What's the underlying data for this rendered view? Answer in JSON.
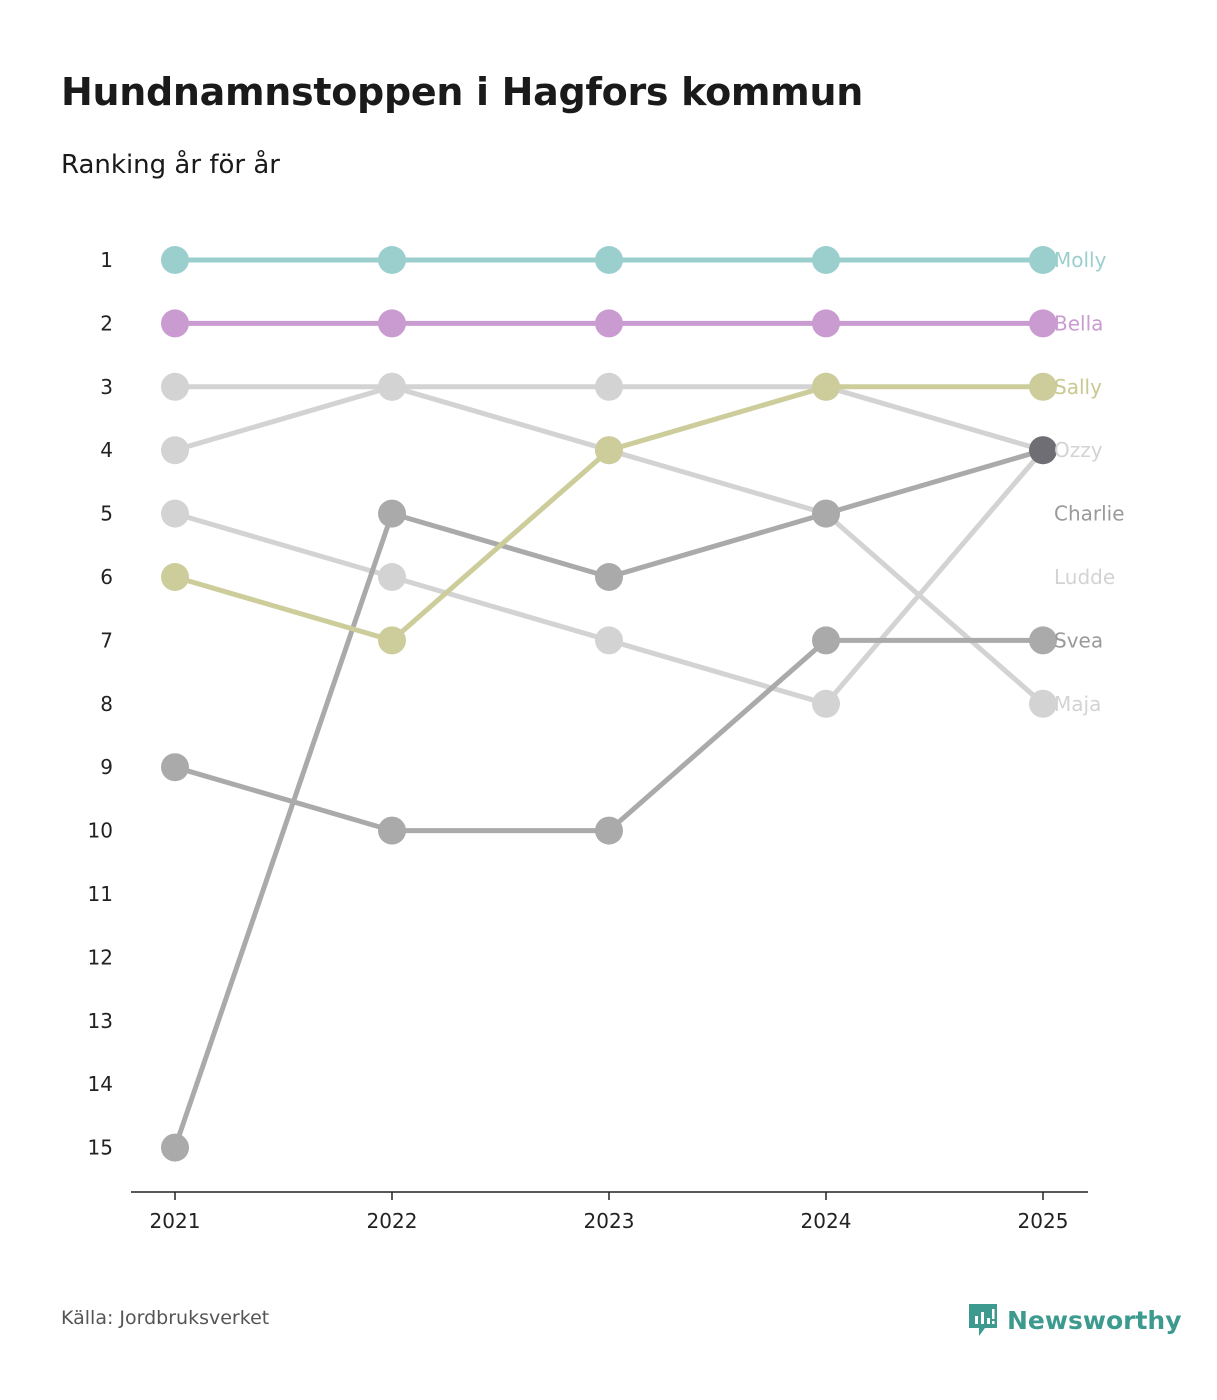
{
  "title": "Hundnamnstoppen i Hagfors kommun",
  "subtitle": "Ranking år för år",
  "source": "Källa: Jordbruksverket",
  "brand": {
    "name": "Newsworthy",
    "icon": "newsworthy-logo-icon",
    "color": "#3d9a8f"
  },
  "chart_data": {
    "type": "line",
    "chart_kind": "bump",
    "x": [
      "2021",
      "2022",
      "2023",
      "2024",
      "2025"
    ],
    "y_ticks": [
      "1",
      "2",
      "3",
      "4",
      "5",
      "6",
      "7",
      "8",
      "9",
      "10",
      "11",
      "12",
      "13",
      "14",
      "15"
    ],
    "ylim": [
      1,
      15
    ],
    "y_inverted": true,
    "series": [
      {
        "name": "Molly",
        "color": "#9bcfce",
        "label_color": "#9bcfce",
        "values": [
          1,
          1,
          1,
          1,
          1
        ]
      },
      {
        "name": "Bella",
        "color": "#c99bd1",
        "label_color": "#c99bd1",
        "values": [
          2,
          2,
          2,
          2,
          2
        ]
      },
      {
        "name": "Sally",
        "color": "#cccd9b",
        "label_color": "#c8c890",
        "values": [
          6,
          7,
          4,
          3,
          3
        ]
      },
      {
        "name": "Ozzy",
        "color": "#d3d3d3",
        "label_color": "#d3d3d3",
        "values": [
          3,
          3,
          3,
          3,
          4
        ]
      },
      {
        "name": "Charlie",
        "color": "#aaaaaa",
        "label_color": "#9a9a9a",
        "values": [
          15,
          5,
          6,
          5,
          4
        ],
        "end_color": "#6e6e74"
      },
      {
        "name": "Ludde",
        "color": "#d3d3d3",
        "label_color": "#d3d3d3",
        "values": [
          4,
          3,
          4,
          5,
          8
        ]
      },
      {
        "name": "Svea",
        "color": "#aaaaaa",
        "label_color": "#9a9a9a",
        "values": [
          9,
          10,
          10,
          7,
          7
        ]
      },
      {
        "name": "Maja",
        "color": "#d3d3d3",
        "label_color": "#d3d3d3",
        "values": [
          5,
          6,
          7,
          8,
          4
        ]
      }
    ],
    "labels_right": [
      "Molly",
      "Bella",
      "Sally",
      "Ozzy",
      "Charlie",
      "Ludde",
      "Svea",
      "Maja"
    ]
  }
}
